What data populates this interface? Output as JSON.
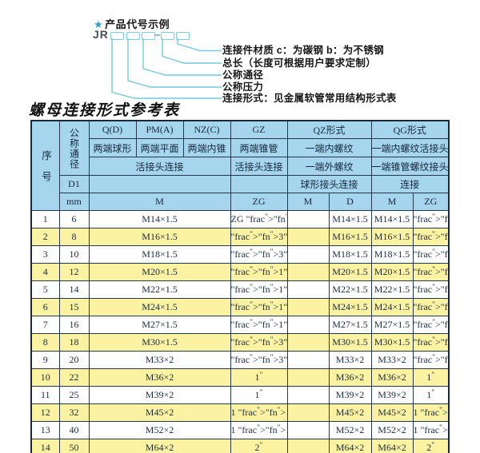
{
  "colors": {
    "header_bg": "#a6d6ee",
    "row_alt_bg": "#fbf2a2",
    "diagram_accent": "#7ccbe0",
    "star": "#2e9fd0",
    "table_border": "#16293d"
  },
  "diagram": {
    "star": "★",
    "title": "产品代号示例",
    "prefix": "JR",
    "dash": "-",
    "labels": [
      "连接件材质  c：为碳钢  b：为不锈钢",
      "总长（长度可根据用户要求定制）",
      "公称通径",
      "公称压力",
      "连接形式：见金属软管常用结构形式表"
    ]
  },
  "table_title": "螺母连接形式参考表",
  "table": {
    "header": {
      "seq": "序号",
      "dn": "公称通径",
      "d1": "D1",
      "mm": "mm",
      "q": "Q(D)",
      "pm": "PM(A)",
      "nz": "NZ(C)",
      "gz": "GZ",
      "qz": "QZ形式",
      "qg": "QG形式",
      "q_desc": "两端球形",
      "pm_desc": "两端平面",
      "nz_desc": "两端内锥",
      "gz_desc": "两端锥管",
      "qz_desc1": "一端内螺纹",
      "qg_desc1": "一端内螺纹活接头",
      "union_conn": "活接头连接",
      "gz_conn": "活接头连接",
      "qz_desc2": "一端外螺纹",
      "qg_desc2": "一端锥管螺纹接头",
      "qz_conn": "球形接头连接",
      "qg_conn": "连接",
      "m1": "M",
      "zg1": "ZG",
      "qz_m": "M",
      "qz_d": "D",
      "qg_m": "M",
      "qg_zg": "ZG"
    },
    "rows": [
      {
        "seq": "1",
        "dn": "6",
        "m": "M14×1.5",
        "zg": "ZG 1/4\"",
        "qz_m": "",
        "qz_d": "M14×1.5",
        "qg_m": "M14×1.5",
        "qg_zg": "1/4\""
      },
      {
        "seq": "2",
        "dn": "8",
        "m": "M16×1.5",
        "zg": "3/8\"",
        "qz_m": "",
        "qz_d": "M16×1.5",
        "qg_m": "M16×1.5",
        "qg_zg": "3/8\""
      },
      {
        "seq": "3",
        "dn": "10",
        "m": "M18×1.5",
        "zg": "3/8\"",
        "qz_m": "",
        "qz_d": "M18×1.5",
        "qg_m": "M18×1.5",
        "qg_zg": "3/8\""
      },
      {
        "seq": "4",
        "dn": "12",
        "m": "M20×1.5",
        "zg": "1/2\"",
        "qz_m": "",
        "qz_d": "M20×1.5",
        "qg_m": "M20×1.5",
        "qg_zg": "1/2\""
      },
      {
        "seq": "5",
        "dn": "14",
        "m": "M22×1.5",
        "zg": "1/2\"",
        "qz_m": "",
        "qz_d": "M22×1.5",
        "qg_m": "M22×1.5",
        "qg_zg": "1/2\""
      },
      {
        "seq": "6",
        "dn": "15",
        "m": "M24×1.5",
        "zg": "1/2\"",
        "qz_m": "",
        "qz_d": "M24×1.5",
        "qg_m": "M24×1.5",
        "qg_zg": "1/2\""
      },
      {
        "seq": "7",
        "dn": "16",
        "m": "M27×1.5",
        "zg": "1/2\"",
        "qz_m": "",
        "qz_d": "M27×1.5",
        "qg_m": "M27×1.5",
        "qg_zg": "1/2\""
      },
      {
        "seq": "8",
        "dn": "18",
        "m": "M30×1.5",
        "zg": "3/4\"",
        "qz_m": "",
        "qz_d": "M30×1.5",
        "qg_m": "M30×1.5",
        "qg_zg": "3/4\""
      },
      {
        "seq": "9",
        "dn": "20",
        "m": "M33×2",
        "zg": "3/4\"",
        "qz_m": "",
        "qz_d": "M33×2",
        "qg_m": "M33×2",
        "qg_zg": "3/4\""
      },
      {
        "seq": "10",
        "dn": "22",
        "m": "M36×2",
        "zg": "1\"",
        "qz_m": "",
        "qz_d": "M36×2",
        "qg_m": "M36×2",
        "qg_zg": "1\""
      },
      {
        "seq": "11",
        "dn": "25",
        "m": "M39×2",
        "zg": "1\"",
        "qz_m": "",
        "qz_d": "M39×2",
        "qg_m": "M39×2",
        "qg_zg": "1\""
      },
      {
        "seq": "12",
        "dn": "32",
        "m": "M45×2",
        "zg": "1 1/4\"",
        "qz_m": "",
        "qz_d": "M45×2",
        "qg_m": "M45×2",
        "qg_zg": "1 1/4\""
      },
      {
        "seq": "13",
        "dn": "40",
        "m": "M52×2",
        "zg": "1 1/2\"",
        "qz_m": "",
        "qz_d": "M52×2",
        "qg_m": "M52×2",
        "qg_zg": "1 1/2\""
      },
      {
        "seq": "14",
        "dn": "50",
        "m": "M64×2",
        "zg": "2\"",
        "qz_m": "",
        "qz_d": "M64×2",
        "qg_m": "M64×2",
        "qg_zg": "2\""
      }
    ]
  }
}
